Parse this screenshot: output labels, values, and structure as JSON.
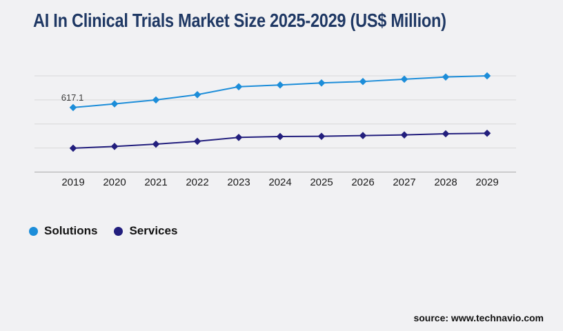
{
  "title": {
    "text": "AI In Clinical Trials Market Size 2025-2029 (US$ Million)",
    "color": "#1f3864"
  },
  "chart_data": {
    "type": "line",
    "title": "AI In Clinical Trials Market Size 2025-2029 (US$ Million)",
    "categories": [
      "2019",
      "2020",
      "2021",
      "2022",
      "2023",
      "2024",
      "2025",
      "2026",
      "2027",
      "2028",
      "2029"
    ],
    "series": [
      {
        "name": "Solutions",
        "color": "#1c8dd9",
        "marker": "diamond",
        "values": [
          617.1,
          652,
          690,
          740,
          816,
          833,
          852,
          866,
          888,
          909,
          920
        ]
      },
      {
        "name": "Services",
        "color": "#221e7d",
        "marker": "diamond",
        "values": [
          228,
          245,
          267,
          294,
          331,
          340,
          342,
          349,
          355,
          366,
          371
        ]
      }
    ],
    "xlabel": "",
    "ylabel": "",
    "ylim": [
      0,
      920
    ],
    "y_tick_labels_visible": false,
    "gridlines": {
      "count": 5,
      "color": "#d8d8d8",
      "axis_color": "#a9a9a9"
    },
    "legend_position": "bottom-left",
    "data_labels": [
      {
        "series": "Solutions",
        "category": "2019",
        "text": "617.1",
        "color": "#3a3a3a"
      }
    ],
    "x_axis_label_color": "#1a1a1a"
  },
  "footer": {
    "source_text": "source: www.technavio.com"
  },
  "page": {
    "background": "#f1f1f3"
  }
}
